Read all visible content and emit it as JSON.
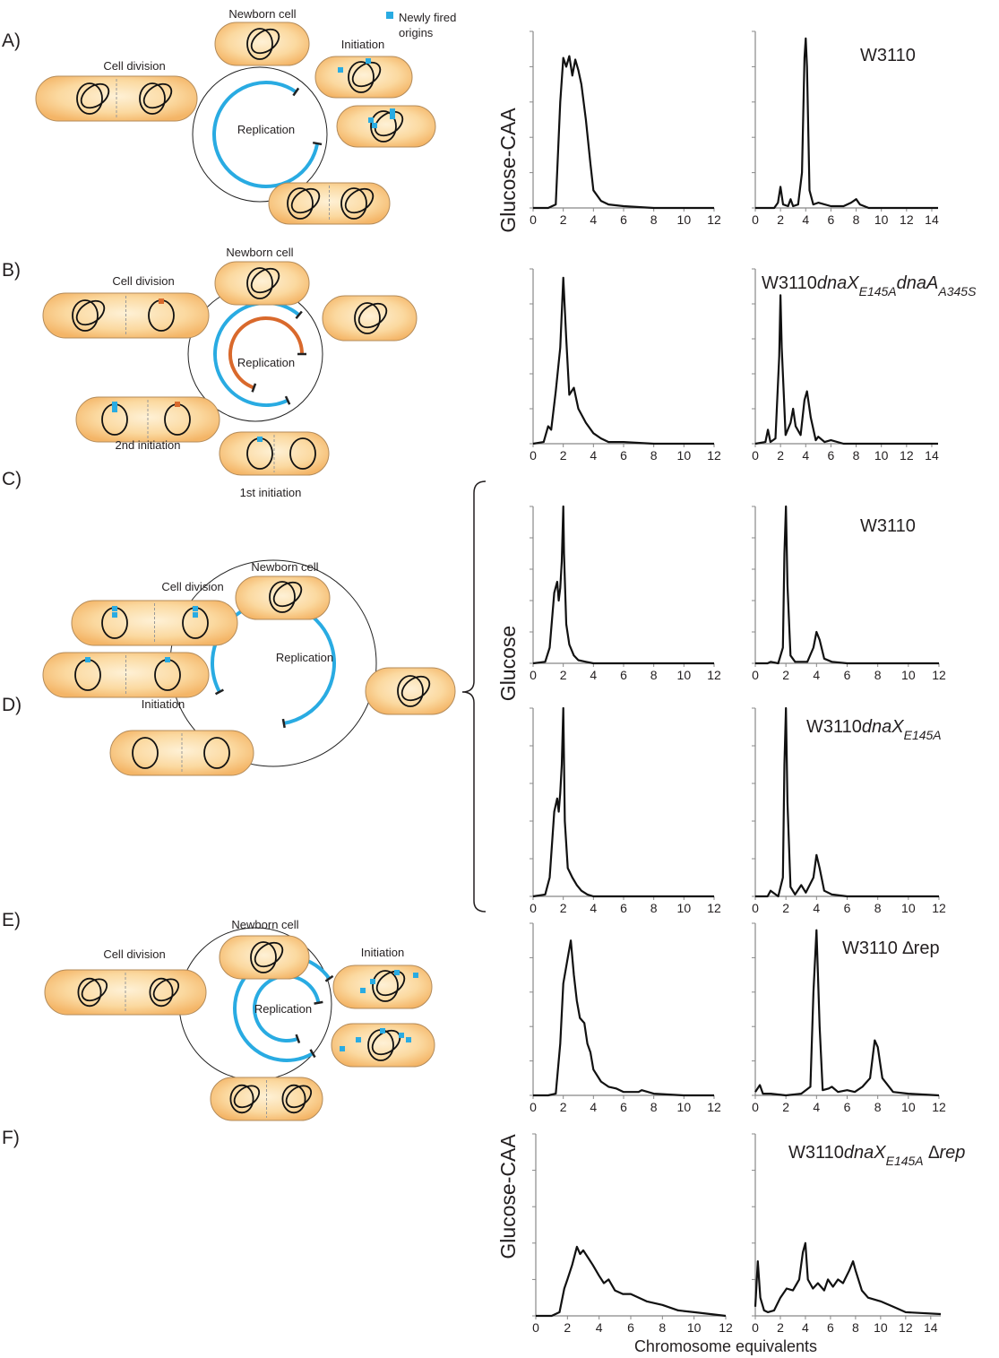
{
  "figure": {
    "panel_labels": [
      "A)",
      "B)",
      "C)",
      "D)",
      "E)",
      "F)"
    ],
    "row_labels": [
      "Glucose-CAA",
      "Glucose",
      "Glucose-CAA"
    ],
    "x_axis_label": "Chromosome equivalents",
    "diagram_a": {
      "newborn": "Newborn cell",
      "initiation": "Initiation",
      "division": "Cell division",
      "replication": "Replication",
      "legend": [
        "Newly fired",
        "origins"
      ]
    },
    "diagram_b": {
      "newborn": "Newborn cell",
      "division": "Cell division",
      "replication": "Replication",
      "second": "2nd initiation",
      "first": "1st initiation"
    },
    "diagram_c": {
      "newborn": "Newborn cell",
      "division": "Cell division",
      "replication": "Replication",
      "initiation": "Initiation"
    },
    "diagram_e": {
      "newborn": "Newborn cell",
      "division": "Cell division",
      "replication": "Replication",
      "initiation": "Initiation"
    }
  },
  "chart_data": [
    {
      "type": "line",
      "xlim": [
        0,
        12
      ],
      "ylim": [
        0,
        100
      ],
      "xticks": [
        0,
        2,
        4,
        6,
        8,
        10,
        12
      ],
      "yticks": [
        0,
        20,
        40,
        60,
        80,
        100
      ],
      "x": [
        0,
        1,
        1.5,
        1.8,
        2,
        2.2,
        2.4,
        2.6,
        2.8,
        3,
        3.2,
        3.5,
        3.8,
        4,
        4.5,
        5,
        6,
        8,
        12
      ],
      "y": [
        0,
        0,
        2,
        60,
        85,
        80,
        86,
        75,
        84,
        78,
        70,
        50,
        25,
        10,
        4,
        2,
        1,
        0,
        0
      ]
    },
    {
      "type": "line",
      "title_parts": [
        {
          "text": "W3110",
          "style": "normal"
        }
      ],
      "xlim": [
        0,
        14.5
      ],
      "ylim": [
        0,
        100
      ],
      "xticks": [
        0,
        2,
        4,
        6,
        8,
        10,
        12,
        14
      ],
      "yticks": [
        0,
        20,
        40,
        60,
        80,
        100
      ],
      "x": [
        0,
        1.5,
        1.8,
        2,
        2.2,
        2.6,
        2.8,
        3,
        3.4,
        3.7,
        3.9,
        4,
        4.1,
        4.3,
        4.6,
        5,
        6,
        7,
        7.6,
        8,
        8.3,
        9,
        14.5
      ],
      "y": [
        0,
        0,
        3,
        12,
        2,
        1,
        5,
        1,
        2,
        20,
        85,
        96,
        80,
        10,
        2,
        3,
        1,
        1,
        3,
        5,
        2,
        0,
        0
      ]
    },
    {
      "type": "line",
      "xlim": [
        0,
        12
      ],
      "ylim": [
        0,
        100
      ],
      "xticks": [
        0,
        2,
        4,
        6,
        8,
        10,
        12
      ],
      "yticks": [
        0,
        20,
        40,
        60,
        80,
        100
      ],
      "x": [
        0,
        0.7,
        1,
        1.2,
        1.5,
        1.8,
        2,
        2.2,
        2.4,
        2.7,
        3,
        3.5,
        4,
        4.5,
        5,
        6,
        8,
        12
      ],
      "y": [
        0,
        1,
        10,
        8,
        30,
        55,
        95,
        60,
        28,
        32,
        20,
        12,
        6,
        3,
        1,
        1,
        0,
        0
      ]
    },
    {
      "type": "line",
      "title_parts": [
        {
          "text": "W3110",
          "style": "normal"
        },
        {
          "text": "dnaX",
          "style": "italic"
        },
        {
          "text": "E145A",
          "style": "italic-sub"
        },
        {
          "text": "dnaA",
          "style": "italic"
        },
        {
          "text": "A345S",
          "style": "italic-sub"
        }
      ],
      "xlim": [
        0,
        14.5
      ],
      "ylim": [
        0,
        100
      ],
      "xticks": [
        0,
        2,
        4,
        6,
        8,
        10,
        12,
        14
      ],
      "yticks": [
        0,
        20,
        40,
        60,
        80,
        100
      ],
      "x": [
        0,
        0.8,
        1,
        1.2,
        1.6,
        1.9,
        2,
        2.1,
        2.4,
        2.8,
        3,
        3.2,
        3.6,
        3.9,
        4.1,
        4.4,
        4.8,
        5,
        5.5,
        6,
        7,
        14.5
      ],
      "y": [
        0,
        1,
        8,
        1,
        3,
        50,
        85,
        55,
        5,
        12,
        20,
        10,
        5,
        25,
        30,
        15,
        2,
        4,
        1,
        2,
        0,
        0
      ]
    },
    {
      "type": "line",
      "xlim": [
        0,
        12
      ],
      "ylim": [
        0,
        100
      ],
      "xticks": [
        0,
        2,
        4,
        6,
        8,
        10,
        12
      ],
      "yticks": [
        0,
        20,
        40,
        60,
        80,
        100
      ],
      "x": [
        0,
        0.8,
        1.1,
        1.4,
        1.6,
        1.7,
        1.8,
        1.9,
        2,
        2.05,
        2.2,
        2.4,
        2.7,
        3,
        3.5,
        4,
        12
      ],
      "y": [
        0,
        1,
        10,
        45,
        52,
        40,
        48,
        65,
        100,
        70,
        25,
        12,
        5,
        2,
        1,
        0,
        0
      ]
    },
    {
      "type": "line",
      "title_parts": [
        {
          "text": "W3110",
          "style": "normal"
        }
      ],
      "xlim": [
        0,
        12
      ],
      "ylim": [
        0,
        100
      ],
      "xticks": [
        0,
        2,
        4,
        6,
        8,
        10,
        12
      ],
      "yticks": [
        0,
        20,
        40,
        60,
        80,
        100
      ],
      "x": [
        0,
        0.8,
        1,
        1.5,
        1.8,
        1.9,
        2,
        2.1,
        2.3,
        2.6,
        3,
        3.4,
        3.8,
        4,
        4.2,
        4.5,
        5,
        6,
        12
      ],
      "y": [
        0,
        0,
        1,
        0,
        10,
        70,
        100,
        50,
        5,
        1,
        1,
        1,
        10,
        20,
        15,
        3,
        1,
        0,
        0
      ]
    },
    {
      "type": "line",
      "xlim": [
        0,
        12
      ],
      "ylim": [
        0,
        100
      ],
      "xticks": [
        0,
        2,
        4,
        6,
        8,
        10,
        12
      ],
      "yticks": [
        0,
        20,
        40,
        60,
        80,
        100
      ],
      "x": [
        0,
        0.8,
        1.1,
        1.4,
        1.6,
        1.7,
        1.8,
        1.9,
        2,
        2.1,
        2.3,
        2.6,
        2.9,
        3.2,
        3.6,
        4,
        12
      ],
      "y": [
        0,
        1,
        10,
        45,
        52,
        45,
        55,
        70,
        100,
        40,
        15,
        10,
        6,
        3,
        1,
        0,
        0
      ]
    },
    {
      "type": "line",
      "title_parts": [
        {
          "text": "W3110",
          "style": "normal"
        },
        {
          "text": "dnaX",
          "style": "italic"
        },
        {
          "text": "E145A",
          "style": "italic-sub"
        }
      ],
      "xlim": [
        0,
        12
      ],
      "ylim": [
        0,
        100
      ],
      "xticks": [
        0,
        2,
        4,
        6,
        8,
        10,
        12
      ],
      "yticks": [
        0,
        20,
        40,
        60,
        80,
        100
      ],
      "x": [
        0,
        0.8,
        1,
        1.5,
        1.8,
        1.9,
        2,
        2.1,
        2.3,
        2.6,
        3,
        3.3,
        3.8,
        4,
        4.2,
        4.5,
        5,
        6,
        12
      ],
      "y": [
        0,
        0,
        3,
        0,
        10,
        70,
        100,
        50,
        5,
        1,
        6,
        2,
        10,
        22,
        15,
        3,
        1,
        0,
        0
      ]
    },
    {
      "type": "line",
      "xlim": [
        0,
        12
      ],
      "ylim": [
        0,
        100
      ],
      "xticks": [
        0,
        2,
        4,
        6,
        8,
        10,
        12
      ],
      "yticks": [
        0,
        20,
        40,
        60,
        80,
        100
      ],
      "x": [
        0,
        1,
        1.5,
        1.8,
        2,
        2.3,
        2.5,
        2.7,
        2.9,
        3.1,
        3.4,
        3.6,
        3.8,
        4,
        4.5,
        5,
        5.5,
        6,
        7,
        7.2,
        8,
        10,
        12
      ],
      "y": [
        0,
        0,
        1,
        30,
        65,
        80,
        90,
        70,
        55,
        45,
        42,
        30,
        25,
        15,
        8,
        5,
        4,
        2,
        2,
        3,
        1,
        0,
        0
      ]
    },
    {
      "type": "line",
      "title_parts": [
        {
          "text": "W3110 ∆rep",
          "style": "normal"
        }
      ],
      "xlim": [
        0,
        12
      ],
      "ylim": [
        0,
        100
      ],
      "xticks": [
        0,
        2,
        4,
        6,
        8,
        10,
        12
      ],
      "yticks": [
        0,
        20,
        40,
        60,
        80,
        100
      ],
      "x": [
        0,
        0.3,
        0.5,
        1,
        2,
        3,
        3.6,
        3.8,
        4,
        4.2,
        4.4,
        4.8,
        5,
        5.4,
        6,
        6.5,
        7,
        7.5,
        7.8,
        8,
        8.3,
        9,
        10,
        12
      ],
      "y": [
        2,
        6,
        1,
        1,
        0,
        1,
        5,
        60,
        96,
        40,
        3,
        4,
        5,
        2,
        3,
        2,
        5,
        10,
        32,
        28,
        10,
        2,
        1,
        0
      ]
    },
    {
      "type": "line",
      "xlim": [
        0,
        12
      ],
      "ylim": [
        0,
        100
      ],
      "xticks": [
        0,
        2,
        4,
        6,
        8,
        10,
        12
      ],
      "yticks": [
        0,
        20,
        40,
        60,
        80,
        100
      ],
      "x": [
        0,
        1,
        1.5,
        1.8,
        2,
        2.3,
        2.6,
        2.8,
        3,
        3.3,
        3.6,
        4,
        4.3,
        4.6,
        5,
        5.5,
        6,
        7,
        8,
        9,
        10,
        12
      ],
      "y": [
        0,
        0,
        2,
        15,
        20,
        28,
        38,
        34,
        36,
        32,
        28,
        22,
        18,
        20,
        14,
        12,
        12,
        8,
        6,
        3,
        2,
        0
      ]
    },
    {
      "type": "line",
      "title_parts": [
        {
          "text": "W3110",
          "style": "normal"
        },
        {
          "text": "dnaX",
          "style": "italic"
        },
        {
          "text": "E145A",
          "style": "italic-sub"
        },
        {
          "text": " ∆rep",
          "style": "italic"
        }
      ],
      "xlim": [
        0,
        14.8
      ],
      "ylim": [
        0,
        100
      ],
      "xticks": [
        0,
        2,
        4,
        6,
        8,
        10,
        12,
        14
      ],
      "yticks": [
        0,
        20,
        40,
        60,
        80,
        100
      ],
      "x": [
        0,
        0.2,
        0.4,
        0.7,
        1,
        1.5,
        2,
        2.5,
        3,
        3.5,
        3.8,
        4,
        4.2,
        4.6,
        5,
        5.5,
        5.8,
        6.2,
        6.6,
        7,
        7.5,
        7.8,
        8,
        8.5,
        9,
        10,
        11,
        12,
        14.8
      ],
      "y": [
        5,
        30,
        10,
        3,
        2,
        3,
        10,
        15,
        14,
        20,
        35,
        40,
        20,
        15,
        18,
        14,
        20,
        16,
        20,
        18,
        25,
        30,
        25,
        14,
        10,
        8,
        5,
        2,
        1
      ]
    }
  ]
}
